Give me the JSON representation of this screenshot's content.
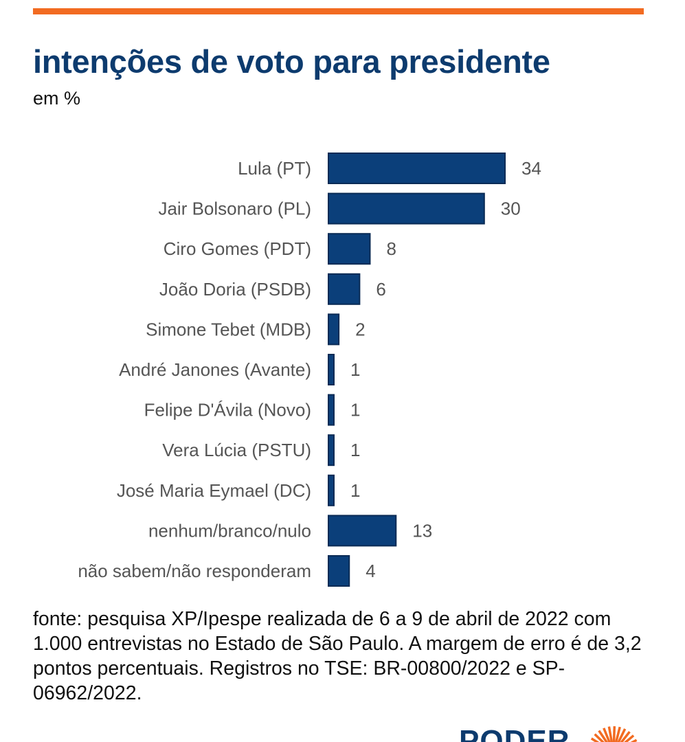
{
  "header": {
    "title": "intenções de voto para presidente",
    "subtitle": "em %"
  },
  "colors": {
    "accent_bar": "#f26b21",
    "bar": "#0b3f7a",
    "bar_border": "#0a2b55",
    "title": "#0d3b6e"
  },
  "chart_data": {
    "type": "bar",
    "orientation": "horizontal",
    "title": "intenções de voto para presidente",
    "subtitle": "em %",
    "categories": [
      "Lula (PT)",
      "Jair Bolsonaro (PL)",
      "Ciro Gomes (PDT)",
      "João Doria (PSDB)",
      "Simone Tebet (MDB)",
      "André Janones (Avante)",
      "Felipe D'Ávila (Novo)",
      "Vera Lúcia (PSTU)",
      "José Maria Eymael (DC)",
      "nenhum/branco/nulo",
      "não sabem/não responderam"
    ],
    "values": [
      34,
      30,
      8,
      6,
      2,
      1,
      1,
      1,
      1,
      13,
      4
    ],
    "xlabel": "",
    "ylabel": "",
    "grid": false
  },
  "source": "fonte: pesquisa XP/Ipespe realizada de 6 a 9 de abril de 2022 com 1.000 entrevistas no Estado de São Paulo. A margem de erro é de 3,2 pontos percentuais. Registros no TSE: BR-00800/2022 e SP-06962/2022.",
  "logo": {
    "text": "PODER"
  }
}
